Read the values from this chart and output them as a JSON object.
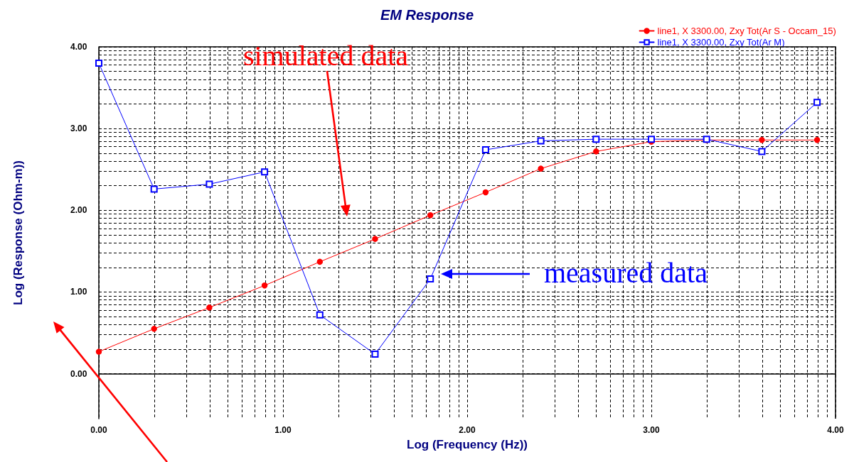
{
  "chart_data": {
    "type": "line",
    "title": "EM Response",
    "xlabel": "Log (Frequency (Hz))",
    "ylabel": "Log (Response (Ohm-m))",
    "x": [
      0,
      0.3,
      0.6,
      0.9,
      1.2,
      1.5,
      1.8,
      2.1,
      2.4,
      2.7,
      3.0,
      3.3,
      3.6,
      3.9
    ],
    "series": [
      {
        "name": "line1, X 3300.00, Zxy Tot(Ar S - Occam_15)",
        "color": "#ff0000",
        "marker": "circle",
        "values": [
          0.27,
          0.55,
          0.81,
          1.08,
          1.37,
          1.65,
          1.94,
          2.22,
          2.51,
          2.72,
          2.84,
          2.86,
          2.86,
          2.86
        ]
      },
      {
        "name": "line1, X 3300.00, Zxy Tot(Ar M)",
        "color": "#0000ff",
        "marker": "square",
        "values": [
          3.8,
          2.26,
          2.32,
          2.47,
          0.72,
          0.24,
          1.16,
          2.74,
          2.85,
          2.87,
          2.87,
          2.87,
          2.72,
          3.32
        ]
      }
    ],
    "xlim": [
      0,
      4
    ],
    "ylim": [
      -0.55,
      4
    ],
    "xticks": [
      {
        "value": 0,
        "label": "0.00"
      },
      {
        "value": 0.301,
        "label": null
      },
      {
        "value": 0.477,
        "label": null
      },
      {
        "value": 0.602,
        "label": null
      },
      {
        "value": 0.699,
        "label": null
      },
      {
        "value": 0.778,
        "label": null
      },
      {
        "value": 0.845,
        "label": null
      },
      {
        "value": 0.903,
        "label": null
      },
      {
        "value": 0.954,
        "label": null
      },
      {
        "value": 1,
        "label": "1.00"
      },
      {
        "value": 1.301,
        "label": null
      },
      {
        "value": 1.477,
        "label": null
      },
      {
        "value": 1.602,
        "label": null
      },
      {
        "value": 1.699,
        "label": null
      },
      {
        "value": 1.778,
        "label": null
      },
      {
        "value": 1.845,
        "label": null
      },
      {
        "value": 1.903,
        "label": null
      },
      {
        "value": 1.954,
        "label": null
      },
      {
        "value": 2,
        "label": "2.00"
      },
      {
        "value": 2.301,
        "label": null
      },
      {
        "value": 2.477,
        "label": null
      },
      {
        "value": 2.602,
        "label": null
      },
      {
        "value": 2.699,
        "label": null
      },
      {
        "value": 2.778,
        "label": null
      },
      {
        "value": 2.845,
        "label": null
      },
      {
        "value": 2.903,
        "label": null
      },
      {
        "value": 2.954,
        "label": null
      },
      {
        "value": 3,
        "label": "3.00"
      },
      {
        "value": 3.301,
        "label": null
      },
      {
        "value": 3.477,
        "label": null
      },
      {
        "value": 3.602,
        "label": null
      },
      {
        "value": 3.699,
        "label": null
      },
      {
        "value": 3.778,
        "label": null
      },
      {
        "value": 3.845,
        "label": null
      },
      {
        "value": 3.903,
        "label": null
      },
      {
        "value": 3.954,
        "label": null
      },
      {
        "value": 4,
        "label": "4.00"
      }
    ],
    "yticks": [
      {
        "value": 0,
        "label": "0.00"
      },
      {
        "value": 0.301,
        "label": null
      },
      {
        "value": 0.477,
        "label": null
      },
      {
        "value": 0.602,
        "label": null
      },
      {
        "value": 0.699,
        "label": null
      },
      {
        "value": 0.778,
        "label": null
      },
      {
        "value": 0.845,
        "label": null
      },
      {
        "value": 0.903,
        "label": null
      },
      {
        "value": 0.954,
        "label": null
      },
      {
        "value": 1,
        "label": "1.00"
      },
      {
        "value": 1.301,
        "label": null
      },
      {
        "value": 1.477,
        "label": null
      },
      {
        "value": 1.602,
        "label": null
      },
      {
        "value": 1.699,
        "label": null
      },
      {
        "value": 1.778,
        "label": null
      },
      {
        "value": 1.845,
        "label": null
      },
      {
        "value": 1.903,
        "label": null
      },
      {
        "value": 1.954,
        "label": null
      },
      {
        "value": 2,
        "label": "2.00"
      },
      {
        "value": 2.301,
        "label": null
      },
      {
        "value": 2.477,
        "label": null
      },
      {
        "value": 2.602,
        "label": null
      },
      {
        "value": 2.699,
        "label": null
      },
      {
        "value": 2.778,
        "label": null
      },
      {
        "value": 2.845,
        "label": null
      },
      {
        "value": 2.903,
        "label": null
      },
      {
        "value": 2.954,
        "label": null
      },
      {
        "value": 3,
        "label": "3.00"
      },
      {
        "value": 3.301,
        "label": null
      },
      {
        "value": 3.477,
        "label": null
      },
      {
        "value": 3.602,
        "label": null
      },
      {
        "value": 3.699,
        "label": null
      },
      {
        "value": 3.778,
        "label": null
      },
      {
        "value": 3.845,
        "label": null
      },
      {
        "value": 3.903,
        "label": null
      },
      {
        "value": 3.954,
        "label": null
      },
      {
        "value": 4,
        "label": "4.00"
      }
    ],
    "grid": true,
    "legend": "top right",
    "line_style": "solid",
    "annotations": [
      "simulated data",
      "measured data"
    ]
  }
}
